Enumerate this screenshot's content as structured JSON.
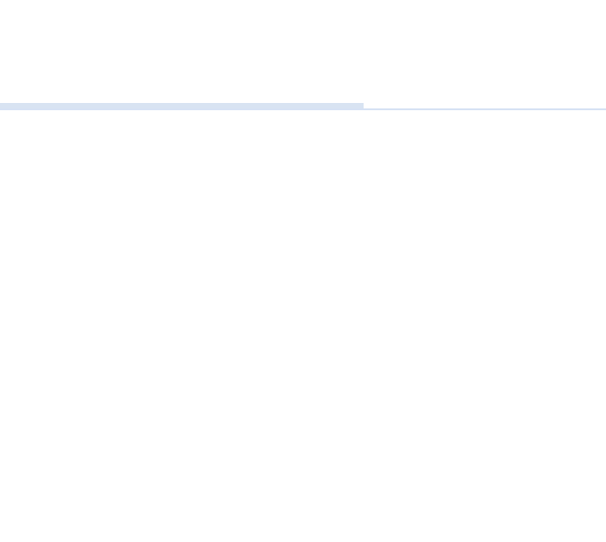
{
  "progress": {
    "value_fraction": 0.6
  },
  "colors": {
    "progress_fill": "#d8e3f2",
    "progress_line": "#d6e2f4",
    "background": "#ffffff"
  }
}
